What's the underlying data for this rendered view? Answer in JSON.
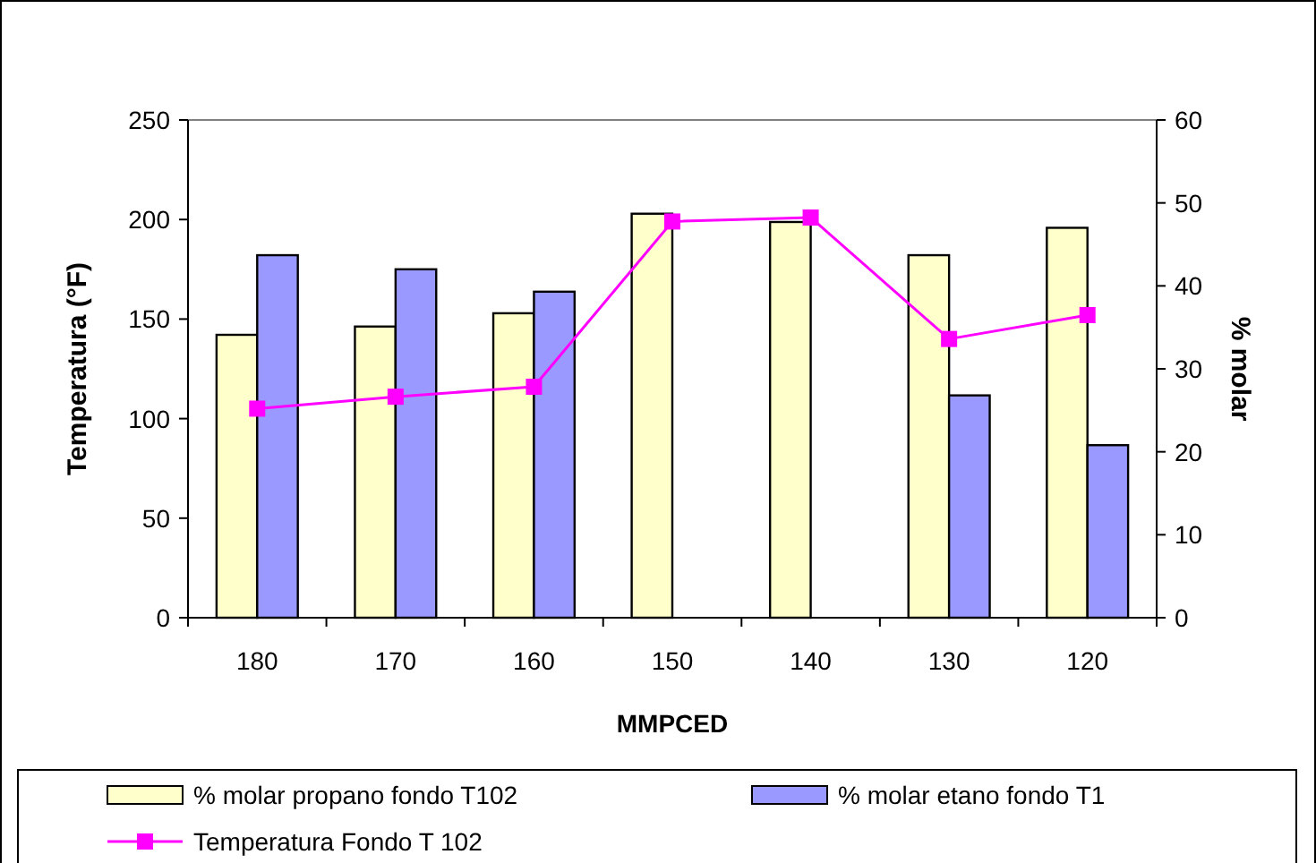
{
  "chart_data": {
    "type": "bar",
    "xlabel": "MMPCED",
    "ylabel": "Temperatura (°F)",
    "y2label": "% molar",
    "categories": [
      "180",
      "170",
      "160",
      "150",
      "140",
      "130",
      "120"
    ],
    "series": [
      {
        "name": "% molar propano fondo T102",
        "color": "#ffffcc",
        "axis": "y2",
        "values": [
          34.1,
          35.1,
          36.7,
          48.7,
          47.7,
          43.7,
          47.0
        ]
      },
      {
        "name": "% molar etano fondo T1",
        "color": "#9999ff",
        "axis": "y2",
        "values": [
          43.7,
          42.0,
          39.3,
          null,
          null,
          26.8,
          20.8
        ]
      },
      {
        "name": "Temperatura Fondo T 102",
        "type": "line",
        "color": "#ff00ff",
        "axis": "y",
        "marker": "square",
        "values": [
          105,
          111,
          116,
          199,
          201,
          140,
          152
        ]
      }
    ],
    "ylim": [
      0,
      250
    ],
    "yticks": [
      0,
      50,
      100,
      150,
      200,
      250
    ],
    "y2lim": [
      0,
      60
    ],
    "y2ticks": [
      0,
      10,
      20,
      30,
      40,
      50,
      60
    ],
    "grid": false,
    "legend": "bottom"
  }
}
